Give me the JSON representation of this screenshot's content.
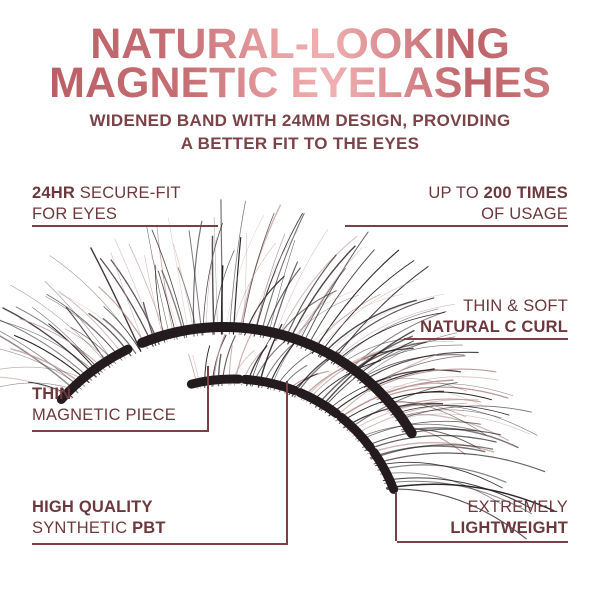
{
  "title": {
    "line1": "NATURAL-LOOKING",
    "line2": "MAGNETIC EYELASHES"
  },
  "subtitle": {
    "line1": "WIDENED BAND WITH 24MM DESIGN, PROVIDING",
    "line2": "A BETTER FIT TO THE EYES"
  },
  "callouts": {
    "secure_fit": {
      "bold": "24HR",
      "after_bold": " SECURE-FIT",
      "line2": "FOR EYES"
    },
    "usage": {
      "before_bold": "UP TO ",
      "bold": "200 TIMES",
      "line2": "OF USAGE"
    },
    "natural_curl": {
      "line1": "THIN & SOFT",
      "line2": "NATURAL C CURL"
    },
    "magnetic_piece": {
      "line1": "THIN",
      "line2": "MAGNETIC PIECE"
    },
    "synthetic_pbt": {
      "line1": "HIGH QUALITY",
      "line2_before_bold": "SYNTHETIC ",
      "line2_bold": "PBT"
    },
    "lightweight": {
      "line1": "EXTREMELY",
      "line2": "LIGHTWEIGHT"
    }
  },
  "image": {
    "name": "magnetic-eyelashes-photo"
  },
  "colors": {
    "callout_text": "#6d383d",
    "connector_line": "#7b4044",
    "subtitle_text": "#7b4347",
    "title_dark": "#b4585f",
    "title_light": "#f0b0b1",
    "lash_dark": "#231b1e",
    "lash_light": "#bb9795"
  }
}
